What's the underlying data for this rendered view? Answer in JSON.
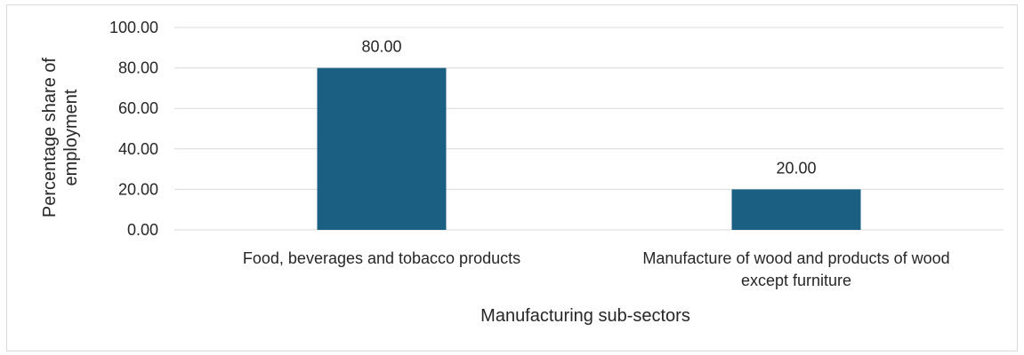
{
  "chart_data": {
    "type": "bar",
    "categories": [
      [
        "Food, beverages and tobacco products"
      ],
      [
        "Manufacture of wood and products of wood",
        "except furniture"
      ]
    ],
    "values": [
      80.0,
      20.0
    ],
    "data_labels": [
      "80.00",
      "20.00"
    ],
    "xlabel": "Manufacturing sub-sectors",
    "ylabel": [
      "Percentage share of",
      "employment"
    ],
    "ylim": [
      0,
      100
    ],
    "yticks": [
      0,
      20,
      40,
      60,
      80,
      100
    ],
    "ytick_labels": [
      "0.00",
      "20.00",
      "40.00",
      "60.00",
      "80.00",
      "100.00"
    ],
    "grid": true,
    "legend": "none",
    "bar_color": "#1b5f82",
    "grid_color": "#d9d9d9"
  }
}
